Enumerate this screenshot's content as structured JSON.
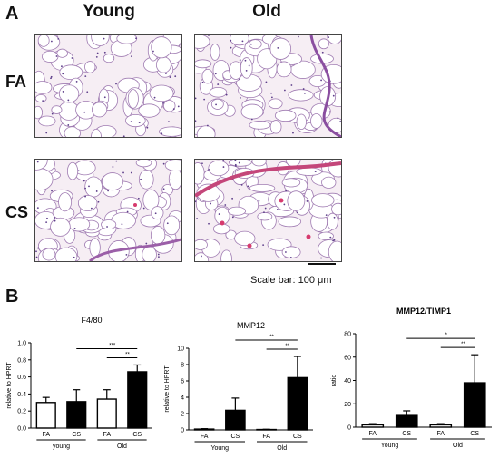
{
  "panelA": {
    "letter": "A",
    "columns": [
      "Young",
      "Old"
    ],
    "rows": [
      "FA",
      "CS"
    ],
    "scale_label": "Scale bar: 100 μm"
  },
  "panelB": {
    "letter": "B"
  },
  "chart_data": [
    {
      "type": "bar",
      "title": "F4/80",
      "ylabel": "relative to HPRT",
      "ylim": [
        0,
        1.0
      ],
      "yticks": [
        "0.0",
        "0.2",
        "0.4",
        "0.6",
        "0.8",
        "1.0"
      ],
      "categories": [
        "FA",
        "CS",
        "FA",
        "CS"
      ],
      "groups": [
        "young",
        "Old"
      ],
      "values": [
        0.3,
        0.31,
        0.34,
        0.66
      ],
      "errors": [
        0.06,
        0.14,
        0.11,
        0.08
      ],
      "fills": [
        "#ffffff",
        "#000000",
        "#ffffff",
        "#000000"
      ],
      "significance": [
        {
          "label": "***",
          "from": 1,
          "to": 3
        },
        {
          "label": "**",
          "from": 2,
          "to": 3
        }
      ]
    },
    {
      "type": "bar",
      "title": "MMP12",
      "ylabel": "relative to HPRT",
      "ylim": [
        0,
        10
      ],
      "yticks": [
        "0",
        "2",
        "4",
        "6",
        "8",
        "10"
      ],
      "categories": [
        "FA",
        "CS",
        "FA",
        "CS"
      ],
      "groups": [
        "Young",
        "Old"
      ],
      "values": [
        0.1,
        2.4,
        0.05,
        6.4
      ],
      "errors": [
        0.05,
        1.5,
        0.03,
        2.6
      ],
      "fills": [
        "#ffffff",
        "#000000",
        "#ffffff",
        "#000000"
      ],
      "significance": [
        {
          "label": "**",
          "from": 1,
          "to": 3
        },
        {
          "label": "**",
          "from": 2,
          "to": 3
        }
      ]
    },
    {
      "type": "bar",
      "title": "MMP12/TIMP1",
      "ylabel": "ratio",
      "ylim": [
        0,
        80
      ],
      "yticks": [
        "0",
        "20",
        "40",
        "60",
        "80"
      ],
      "categories": [
        "FA",
        "CS",
        "FA",
        "CS"
      ],
      "groups": [
        "Young",
        "Old"
      ],
      "values": [
        2,
        10,
        2,
        38
      ],
      "errors": [
        1,
        4,
        1,
        24
      ],
      "fills": [
        "#ffffff",
        "#000000",
        "#ffffff",
        "#000000"
      ],
      "significance": [
        {
          "label": "*",
          "from": 1,
          "to": 3
        },
        {
          "label": "**",
          "from": 2,
          "to": 3
        }
      ]
    }
  ]
}
